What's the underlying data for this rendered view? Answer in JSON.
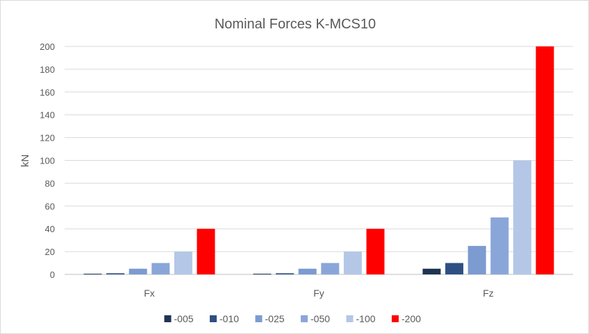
{
  "chart_data": {
    "type": "bar",
    "title": "Nominal Forces K-MCS10",
    "xlabel": "",
    "ylabel": "kN",
    "ylim": [
      0,
      200
    ],
    "yticks": [
      0,
      20,
      40,
      60,
      80,
      100,
      120,
      140,
      160,
      180,
      200
    ],
    "grid": true,
    "legend_position": "bottom",
    "categories": [
      "Fx",
      "Fy",
      "Fz"
    ],
    "series": [
      {
        "name": "-005",
        "color": "#1f3454",
        "values": [
          0.5,
          0.5,
          5
        ]
      },
      {
        "name": "-010",
        "color": "#2e4f83",
        "values": [
          1,
          1,
          10
        ]
      },
      {
        "name": "-025",
        "color": "#7b9bd1",
        "values": [
          5,
          5,
          25
        ]
      },
      {
        "name": "-050",
        "color": "#8aa6d9",
        "values": [
          10,
          10,
          50
        ]
      },
      {
        "name": "-100",
        "color": "#b4c7e7",
        "values": [
          20,
          20,
          100
        ]
      },
      {
        "name": "-200",
        "color": "#ff0000",
        "values": [
          40,
          40,
          200
        ]
      }
    ]
  }
}
